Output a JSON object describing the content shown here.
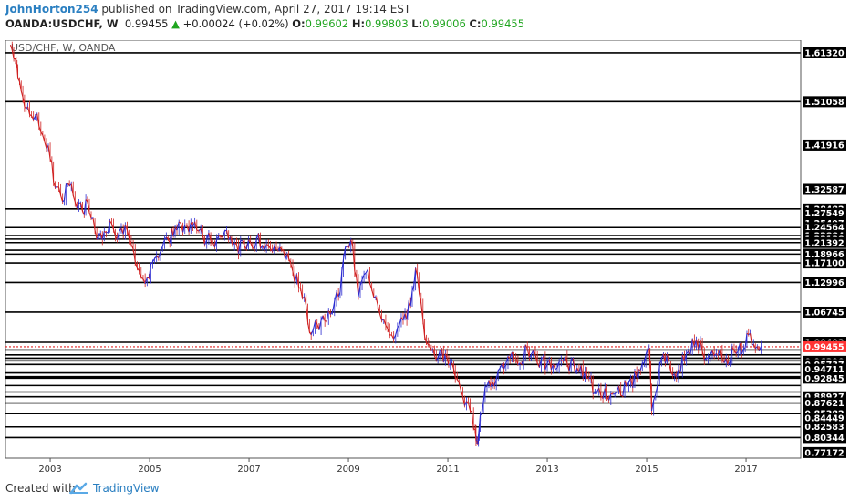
{
  "header": {
    "author": "JohnHorton254",
    "published_text": "published on TradingView.com, April 27, 2017 19:14 EST",
    "symbol": "OANDA:USDCHF, W",
    "last": "0.99455",
    "change": "+0.00024 (+0.02%)",
    "change_arrow": "▲",
    "o_label": "O:",
    "o_value": "0.99602",
    "h_label": "H:",
    "h_value": "0.99803",
    "l_label": "L:",
    "l_value": "0.99006",
    "c_label": "C:",
    "c_value": "0.99455"
  },
  "footer": {
    "created_with": "Created with",
    "brand": "TradingView"
  },
  "chart_data": {
    "type": "line",
    "title": "USD/CHF, W, OANDA",
    "xlabel": "",
    "ylabel": "",
    "ylim": [
      0.76,
      1.64
    ],
    "xlim": [
      2002.1,
      2018.1
    ],
    "grid": false,
    "x_ticks": [
      "2003",
      "2005",
      "2007",
      "2009",
      "2011",
      "2013",
      "2015",
      "2017"
    ],
    "y_ticks": [
      "1.61320",
      "1.51058",
      "1.41916",
      "1.32587",
      "1.28482",
      "1.27549",
      "1.25497",
      "1.24564",
      "1.22884",
      "1.22138",
      "1.21392",
      "1.18966",
      "1.17100",
      "1.12996",
      "1.06745",
      "1.00402",
      "0.99562",
      "0.96390",
      "0.95737",
      "0.94711",
      "0.92845",
      "0.88927",
      "0.87621",
      "0.85382",
      "0.84449",
      "0.82583",
      "0.80344",
      "0.77172"
    ],
    "current_price": "0.99455",
    "horizontal_levels": [
      1.6132,
      1.51058,
      1.28482,
      1.24564,
      1.22884,
      1.22138,
      1.21392,
      1.198,
      1.18966,
      1.171,
      1.12996,
      1.06745,
      1.00402,
      0.9879,
      0.9775,
      0.9705,
      0.965,
      0.95737,
      0.9395,
      0.9317,
      0.92845,
      0.913,
      0.8993,
      0.88927,
      0.87621,
      0.85382,
      0.82583,
      0.80344
    ],
    "series": [
      {
        "x": [
          2002.2,
          2002.3,
          2002.35,
          2002.45,
          2002.55,
          2002.7,
          2002.85,
          2003.0,
          2003.1,
          2003.25,
          2003.35,
          2003.5,
          2003.65,
          2003.75,
          2003.9,
          2004.05,
          2004.2,
          2004.35,
          2004.55,
          2004.75,
          2004.95,
          2005.1,
          2005.3,
          2005.55,
          2005.75,
          2005.95,
          2006.15,
          2006.35,
          2006.55,
          2006.75,
          2006.95,
          2007.15,
          2007.35,
          2007.55,
          2007.8,
          2008.0,
          2008.15,
          2008.25,
          2008.45,
          2008.6,
          2008.8,
          2008.9,
          2009.05,
          2009.2,
          2009.35,
          2009.55,
          2009.75,
          2009.95,
          2010.1,
          2010.25,
          2010.35,
          2010.5,
          2010.6,
          2010.7,
          2010.8,
          2010.95,
          2011.05,
          2011.15,
          2011.3,
          2011.45,
          2011.55,
          2011.6,
          2011.65,
          2011.75,
          2011.9,
          2012.05,
          2012.25,
          2012.45,
          2012.6,
          2012.8,
          2013.0,
          2013.2,
          2013.4,
          2013.6,
          2013.8,
          2014.0,
          2014.2,
          2014.4,
          2014.6,
          2014.8,
          2014.95,
          2015.05,
          2015.1,
          2015.3,
          2015.45,
          2015.6,
          2015.8,
          2016.0,
          2016.2,
          2016.4,
          2016.6,
          2016.8,
          2016.95,
          2017.05,
          2017.15,
          2017.3
        ],
        "y": [
          1.63,
          1.6,
          1.56,
          1.52,
          1.5,
          1.48,
          1.44,
          1.39,
          1.33,
          1.3,
          1.34,
          1.3,
          1.28,
          1.3,
          1.24,
          1.22,
          1.26,
          1.22,
          1.24,
          1.16,
          1.14,
          1.18,
          1.22,
          1.24,
          1.25,
          1.24,
          1.22,
          1.22,
          1.24,
          1.21,
          1.2,
          1.22,
          1.21,
          1.2,
          1.18,
          1.12,
          1.08,
          1.02,
          1.05,
          1.07,
          1.1,
          1.18,
          1.22,
          1.1,
          1.15,
          1.1,
          1.04,
          1.02,
          1.05,
          1.08,
          1.16,
          1.05,
          1.0,
          0.99,
          0.97,
          0.98,
          0.96,
          0.93,
          0.89,
          0.86,
          0.82,
          0.79,
          0.85,
          0.91,
          0.92,
          0.95,
          0.97,
          0.96,
          0.99,
          0.96,
          0.96,
          0.95,
          0.96,
          0.95,
          0.93,
          0.9,
          0.89,
          0.9,
          0.91,
          0.93,
          0.96,
          0.99,
          0.86,
          0.97,
          0.96,
          0.93,
          0.98,
          1.01,
          0.97,
          0.98,
          0.97,
          0.98,
          0.99,
          1.02,
          1.0,
          0.995
        ]
      }
    ]
  },
  "colors": {
    "price_up": "#2b2bd0",
    "price_down": "#d02020",
    "level_line": "#000000",
    "current_price_line": "#e02020",
    "axis_label_bg": "#000000",
    "axis_label_text": "#ffffff",
    "current_label_bg": "#ff3333",
    "author": "#2a7fc1",
    "up_green": "#1fa51f"
  }
}
